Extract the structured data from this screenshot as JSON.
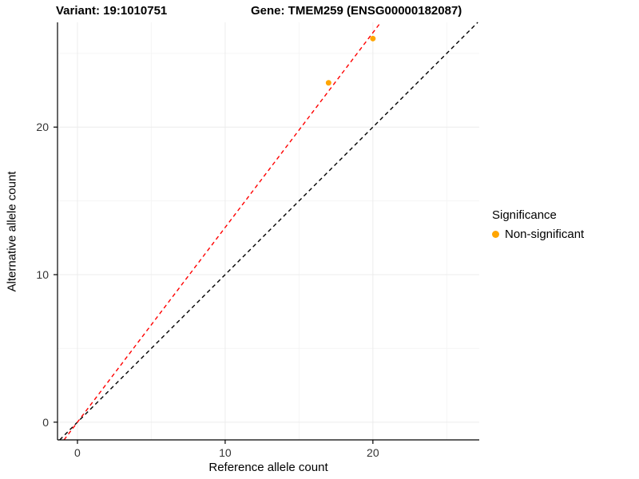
{
  "titles": {
    "variant": "Variant: 19:1010751",
    "gene": "Gene: TMEM259 (ENSG00000182087)"
  },
  "chart_data": {
    "type": "scatter",
    "title_left": "Variant: 19:1010751",
    "title_right": "Gene: TMEM259 (ENSG00000182087)",
    "xlabel": "Reference allele count",
    "ylabel": "Alternative allele count",
    "xlim": [
      -1.35,
      27.2
    ],
    "ylim": [
      -1.2,
      27.1
    ],
    "xticks": [
      0,
      10,
      20
    ],
    "yticks": [
      0,
      10,
      20
    ],
    "xticks_minor": [
      5,
      15,
      25
    ],
    "yticks_minor": [
      5,
      15,
      25
    ],
    "grid": true,
    "grid_major_color": "#ECECEC",
    "grid_minor_color": "#F5F5F5",
    "axis_color": "#000000",
    "background": "#FFFFFF",
    "points": [
      {
        "x": 17,
        "y": 23,
        "significance": "Non-significant"
      },
      {
        "x": 20,
        "y": 26,
        "significance": "Non-significant"
      }
    ],
    "point_color": "#FFA500",
    "point_radius": 3.5,
    "lines": [
      {
        "name": "identity-line",
        "slope": 1,
        "intercept": 0,
        "color": "#000000",
        "dash": "5 4"
      },
      {
        "name": "fit-line",
        "slope": 1.32,
        "intercept": 0,
        "color": "#FF0000",
        "dash": "5 4"
      }
    ],
    "legend": {
      "position": "right",
      "title": "Significance",
      "items": [
        {
          "label": "Non-significant",
          "color": "#FFA500"
        }
      ]
    }
  }
}
